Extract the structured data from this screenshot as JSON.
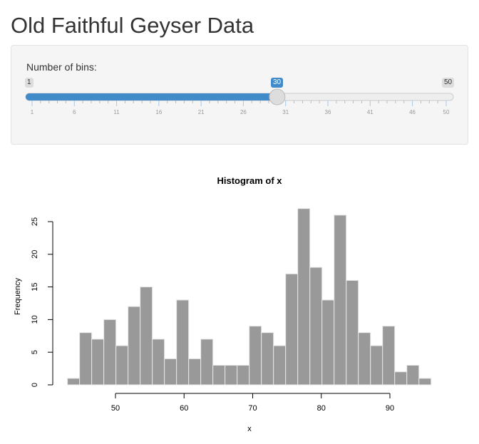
{
  "title": "Old Faithful Geyser Data",
  "slider": {
    "label": "Number of bins:",
    "min": 1,
    "max": 50,
    "value": 30,
    "min_label": "1",
    "max_label": "50",
    "value_label": "30",
    "ticks": [
      "1",
      "6",
      "11",
      "16",
      "21",
      "26",
      "31",
      "36",
      "41",
      "46",
      "50"
    ],
    "accent": "#428bca"
  },
  "chart_data": {
    "type": "bar",
    "title": "Histogram of x",
    "xlabel": "x",
    "ylabel": "Frequency",
    "breaks_start": 43,
    "breaks_end": 96,
    "values": [
      1,
      8,
      7,
      10,
      6,
      12,
      15,
      7,
      4,
      13,
      4,
      7,
      3,
      3,
      3,
      9,
      8,
      6,
      17,
      27,
      18,
      13,
      26,
      16,
      8,
      6,
      9,
      2,
      3,
      1
    ],
    "xticks": [
      "50",
      "60",
      "70",
      "80",
      "90"
    ],
    "yticks": [
      "0",
      "5",
      "10",
      "15",
      "20",
      "25"
    ],
    "bar_color": "#999999",
    "grid": false
  }
}
